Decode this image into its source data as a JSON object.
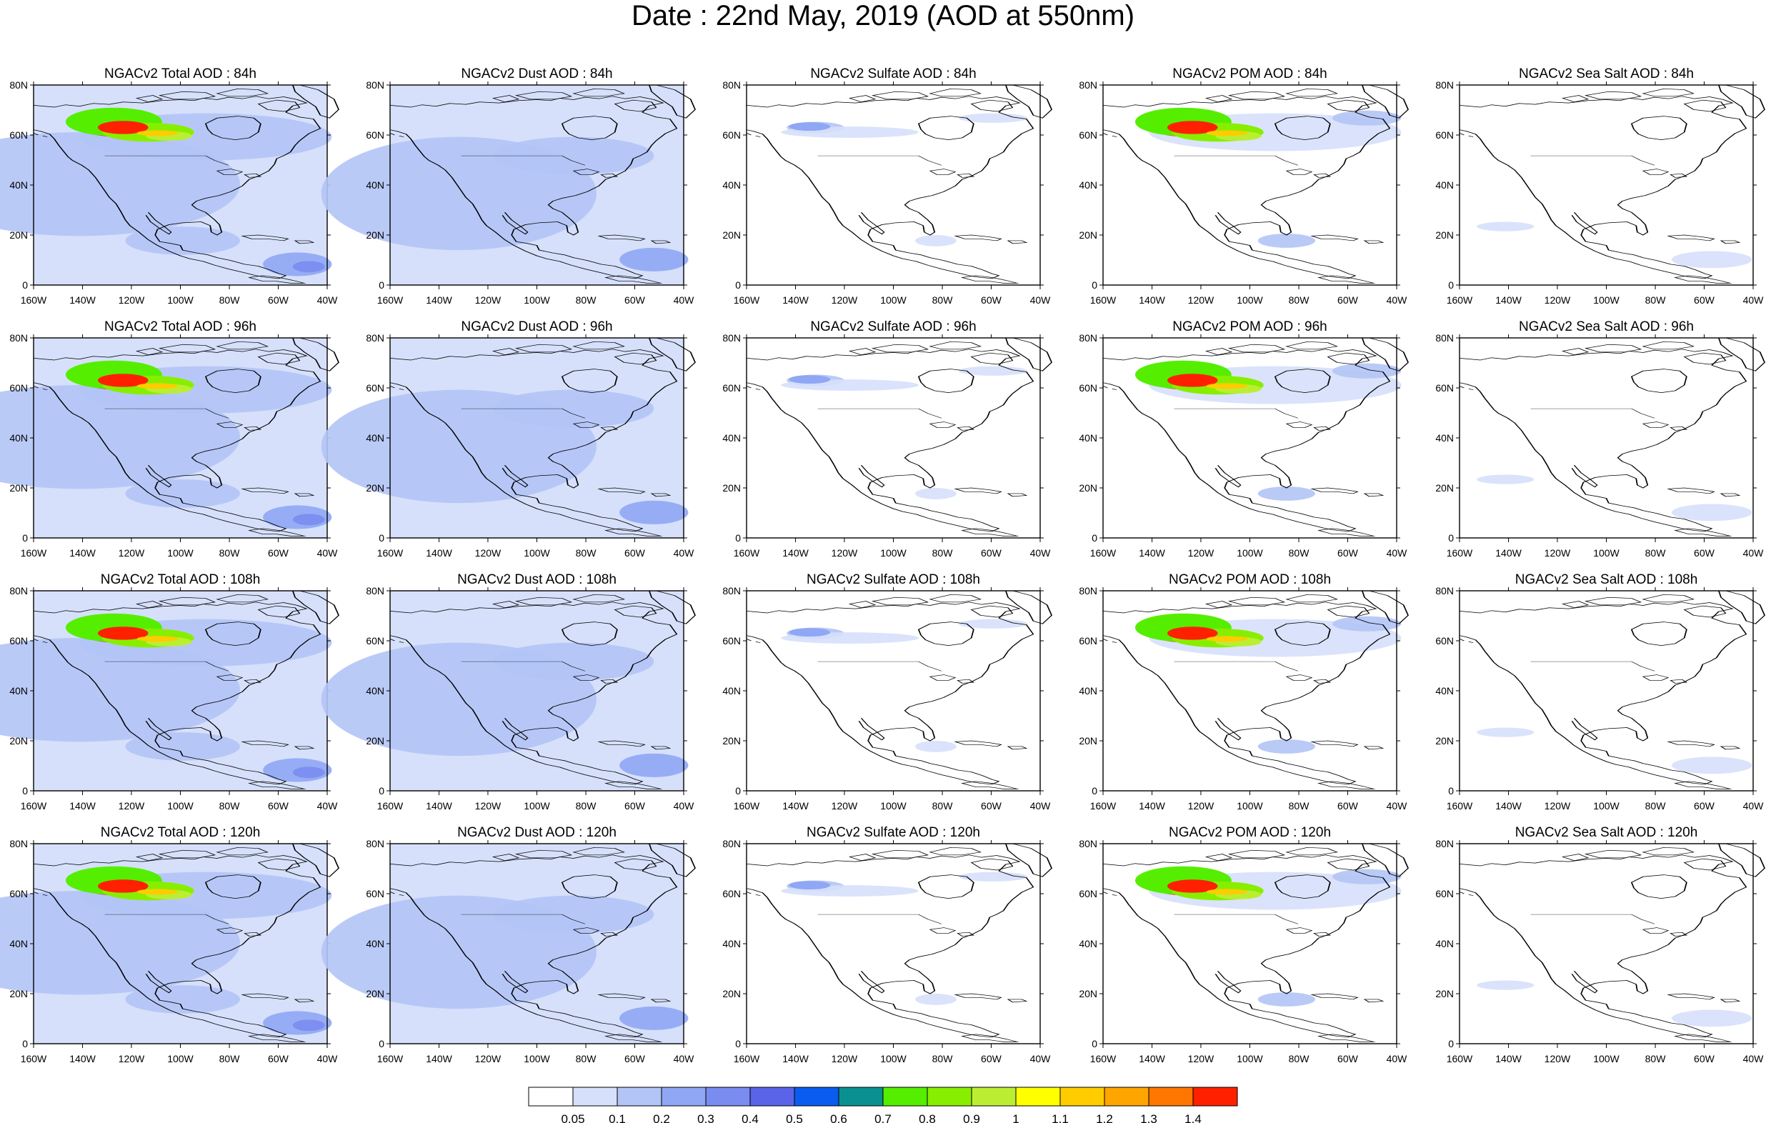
{
  "title": "Date : 22nd May, 2019 (AOD at 550nm)",
  "panel_titles": [
    [
      "NGACv2 Total AOD : 84h",
      "NGACv2 Dust AOD : 84h",
      "NGACv2 Sulfate AOD : 84h",
      "NGACv2 POM AOD : 84h",
      "NGACv2 Sea Salt AOD : 84h"
    ],
    [
      "NGACv2 Total AOD : 96h",
      "NGACv2 Dust AOD : 96h",
      "NGACv2 Sulfate AOD : 96h",
      "NGACv2 POM AOD : 96h",
      "NGACv2 Sea Salt AOD : 96h"
    ],
    [
      "NGACv2 Total AOD : 108h",
      "NGACv2 Dust AOD : 108h",
      "NGACv2 Sulfate AOD : 108h",
      "NGACv2 POM AOD : 108h",
      "NGACv2 Sea Salt AOD : 108h"
    ],
    [
      "NGACv2 Total AOD : 120h",
      "NGACv2 Dust AOD : 120h",
      "NGACv2 Sulfate AOD : 120h",
      "NGACv2 POM AOD : 120h",
      "NGACv2 Sea Salt  AOD : 120h"
    ]
  ],
  "lat_ticks": [
    "80N",
    "60N",
    "40N",
    "20N",
    "0"
  ],
  "lon_ticks": [
    "160W",
    "140W",
    "120W",
    "100W",
    "80W",
    "60W",
    "40W"
  ],
  "colorbar": {
    "labels": [
      "0.05",
      "0.1",
      "0.2",
      "0.3",
      "0.4",
      "0.5",
      "0.6",
      "0.7",
      "0.8",
      "0.9",
      "1",
      "1.1",
      "1.2",
      "1.3",
      "1.4"
    ],
    "colors": [
      "#ffffff",
      "#d6e0fb",
      "#b3c4f6",
      "#8fa7f4",
      "#7a8cf0",
      "#5a64e8",
      "#0a5cf0",
      "#0a9090",
      "#55ee00",
      "#88ee00",
      "#bbee33",
      "#ffff00",
      "#ffcc00",
      "#ffa500",
      "#ff7700",
      "#ff2000"
    ]
  },
  "map_data": {
    "domain": {
      "lon": [
        -160,
        -40
      ],
      "lat": [
        0,
        80
      ]
    },
    "species": [
      "Total",
      "Dust",
      "Sulfate",
      "POM",
      "Sea Salt"
    ],
    "forecast_hours": [
      "84h",
      "96h",
      "108h",
      "120h"
    ],
    "fire_plume_center": {
      "lon": -125,
      "lat": 62
    },
    "fire_plume_peak_aod": "> 1.4"
  }
}
